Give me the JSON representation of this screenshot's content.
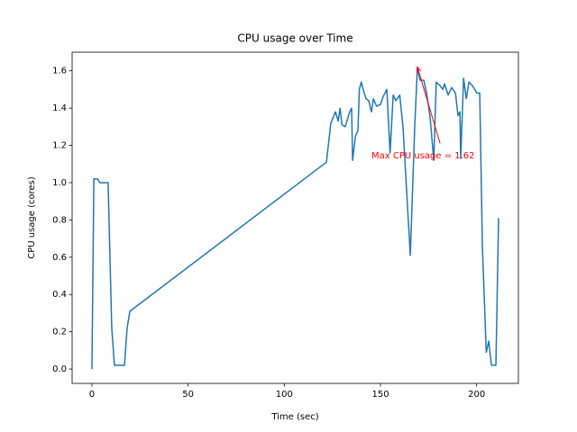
{
  "chart_data": {
    "type": "line",
    "title": "CPU usage over Time",
    "x_label": "Time (sec)",
    "y_label": "CPU usage (cores)",
    "x": [
      0,
      1,
      3,
      4,
      8.4,
      10.3,
      11.7,
      16.9,
      18.3,
      19.7,
      121.9,
      124.2,
      126.6,
      128,
      129,
      130,
      131.7,
      134,
      135,
      135.5,
      137,
      138.3,
      139,
      140,
      141,
      142.5,
      143.9,
      145.3,
      146.3,
      148,
      150,
      151.3,
      153.3,
      155,
      156.6,
      158,
      160,
      161.7,
      165.5,
      167.8,
      169.2,
      170.6,
      172.5,
      174,
      175.8,
      177.7,
      179,
      181,
      182.4,
      183.3,
      185.2,
      187,
      189,
      190.3,
      191.3,
      191.7,
      193.2,
      194.6,
      196,
      197.8,
      200.2,
      201.6,
      203,
      205,
      206.3,
      207.7,
      210,
      211.4
    ],
    "series": [
      {
        "name": "CPU usage",
        "color": "#1f77b4",
        "values": [
          0.0,
          1.02,
          1.02,
          1.0,
          1.0,
          0.22,
          0.02,
          0.02,
          0.22,
          0.31,
          1.11,
          1.32,
          1.38,
          1.33,
          1.4,
          1.31,
          1.3,
          1.38,
          1.4,
          1.12,
          1.25,
          1.28,
          1.5,
          1.54,
          1.5,
          1.45,
          1.44,
          1.38,
          1.45,
          1.41,
          1.42,
          1.46,
          1.5,
          1.16,
          1.47,
          1.44,
          1.47,
          1.3,
          0.61,
          1.3,
          1.62,
          1.55,
          1.55,
          1.48,
          1.35,
          1.12,
          1.54,
          1.52,
          1.5,
          1.53,
          1.47,
          1.51,
          1.48,
          1.36,
          1.38,
          1.13,
          1.56,
          1.45,
          1.54,
          1.52,
          1.48,
          1.48,
          0.65,
          0.09,
          0.15,
          0.02,
          0.02,
          0.81
        ]
      }
    ],
    "xlim": [
      -10.3,
      221.7
    ],
    "ylim": [
      -0.077,
      1.7
    ],
    "xticks": [
      0,
      50,
      100,
      150,
      200
    ],
    "yticks": [
      {
        "value": 0,
        "label": "0.0"
      },
      {
        "value": 0.2,
        "label": "0.2"
      },
      {
        "value": 0.4,
        "label": "0.4"
      },
      {
        "value": 0.6,
        "label": "0.6"
      },
      {
        "value": 0.8,
        "label": "0.8"
      },
      {
        "value": 1.0,
        "label": "1.0"
      },
      {
        "value": 1.2,
        "label": "1.2"
      },
      {
        "value": 1.4,
        "label": "1.4"
      },
      {
        "value": 1.6,
        "label": "1.6"
      }
    ],
    "annotation": {
      "text": "Max CPU usage = 1.62",
      "color": "red",
      "x": 169.2,
      "y": 1.62,
      "text_x": 145.3,
      "text_y": 1.145,
      "arrow_x": 181,
      "arrow_y": 1.21
    }
  }
}
